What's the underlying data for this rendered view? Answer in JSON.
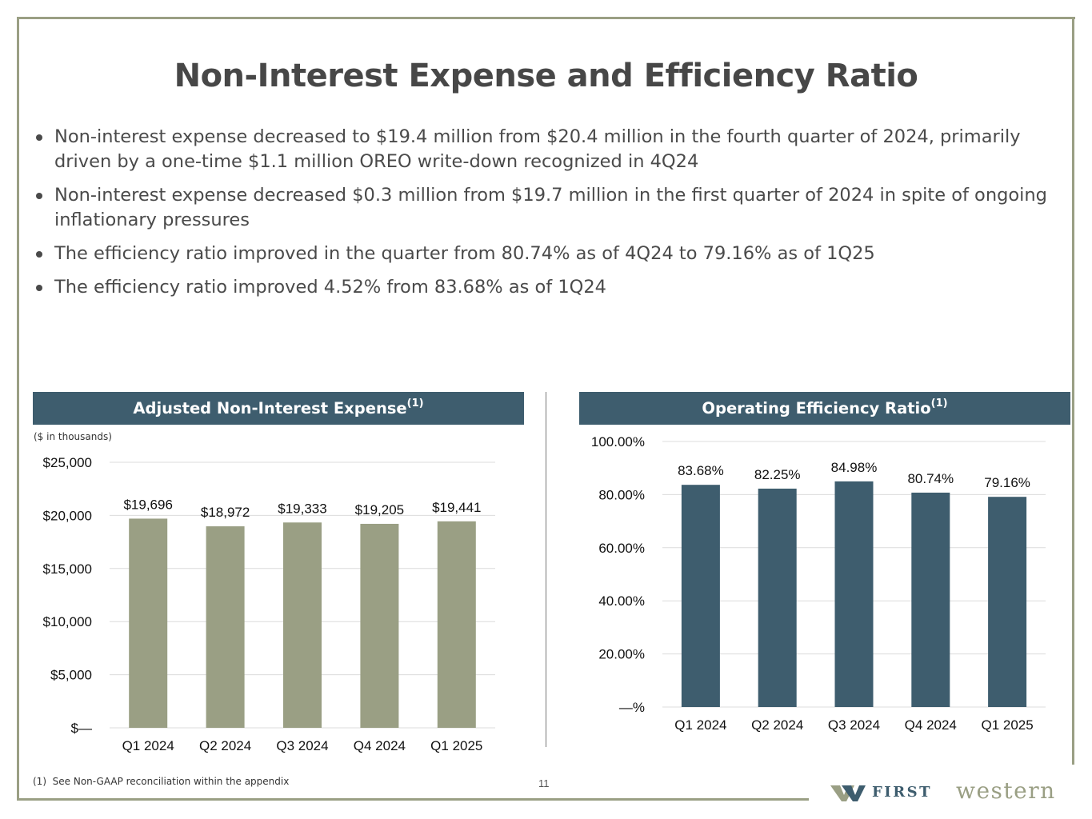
{
  "title": "Non-Interest Expense and Efficiency Ratio",
  "bullets": [
    "Non-interest expense decreased to $19.4 million from $20.4 million in the fourth quarter of 2024, primarily driven by a one-time $1.1 million OREO write-down recognized in 4Q24",
    "Non-interest expense decreased $0.3 million from $19.7 million in the first quarter of 2024 in spite of ongoing inflationary pressures",
    "The efficiency ratio improved in the quarter from 80.74% as of 4Q24 to 79.16% as of 1Q25",
    "The efficiency ratio improved 4.52% from 83.68% as of 1Q24"
  ],
  "left_panel": {
    "title": "Adjusted Non-Interest Expense",
    "superscript": "(1)",
    "units_note": "($ in thousands)"
  },
  "right_panel": {
    "title": "Operating Efficiency Ratio",
    "superscript": "(1)"
  },
  "footnote": {
    "marker": "(1)",
    "text": "See Non-GAAP reconciliation within the appendix"
  },
  "page_number": "11",
  "logo": {
    "first": "FIRST",
    "second": "western"
  },
  "colors": {
    "left_bar": "#9a9f84",
    "right_bar": "#3e5d6e",
    "header_bg": "#3e5d6e",
    "frame": "#9a9f84"
  },
  "chart_data": [
    {
      "type": "bar",
      "title": "Adjusted Non-Interest Expense",
      "ylabel": "$ in thousands",
      "categories": [
        "Q1 2024",
        "Q2 2024",
        "Q3 2024",
        "Q4 2024",
        "Q1 2025"
      ],
      "values": [
        19696,
        18972,
        19333,
        19205,
        19441
      ],
      "data_labels": [
        "$19,696",
        "$18,972",
        "$19,333",
        "$19,205",
        "$19,441"
      ],
      "ylim": [
        0,
        25000
      ],
      "yticks": [
        0,
        5000,
        10000,
        15000,
        20000,
        25000
      ],
      "ytick_labels": [
        "$—",
        "$5,000",
        "$10,000",
        "$15,000",
        "$20,000",
        "$25,000"
      ],
      "grid": true
    },
    {
      "type": "bar",
      "title": "Operating Efficiency Ratio",
      "categories": [
        "Q1 2024",
        "Q2 2024",
        "Q3 2024",
        "Q4 2024",
        "Q1 2025"
      ],
      "values": [
        83.68,
        82.25,
        84.98,
        80.74,
        79.16
      ],
      "data_labels": [
        "83.68%",
        "82.25%",
        "84.98%",
        "80.74%",
        "79.16%"
      ],
      "ylim": [
        0,
        100
      ],
      "yticks": [
        0,
        20,
        40,
        60,
        80,
        100
      ],
      "ytick_labels": [
        "—%",
        "20.00%",
        "40.00%",
        "60.00%",
        "80.00%",
        "100.00%"
      ],
      "grid": true
    }
  ]
}
